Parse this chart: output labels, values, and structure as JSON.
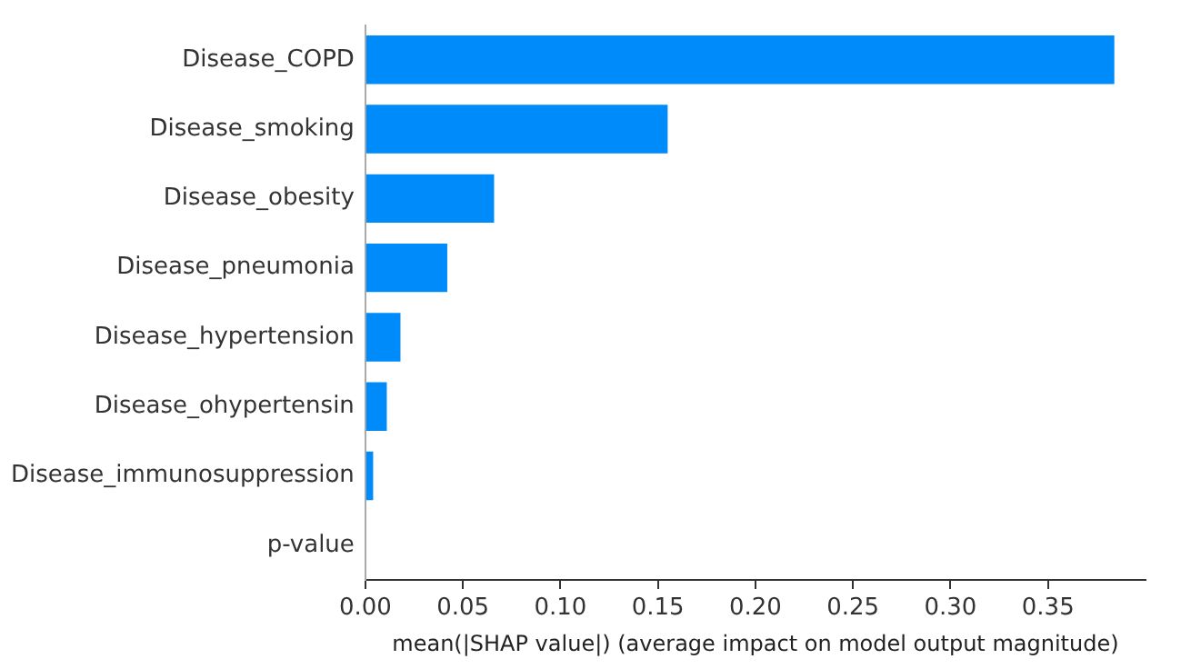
{
  "chart_data": {
    "type": "bar",
    "orientation": "horizontal",
    "xlabel": "mean(|SHAP value|) (average impact on model output magnitude)",
    "categories": [
      "Disease_COPD",
      "Disease_smoking",
      "Disease_obesity",
      "Disease_pneumonia",
      "Disease_hypertension",
      "Disease_ohypertensin",
      "Disease_immunosuppression",
      "p-value"
    ],
    "values": [
      0.384,
      0.155,
      0.066,
      0.042,
      0.018,
      0.011,
      0.004,
      0
    ],
    "color": "#008bfb",
    "xlim": [
      0,
      0.4
    ],
    "xticks": [
      {
        "value": 0,
        "label": "0.00"
      },
      {
        "value": 0.05,
        "label": "0.05"
      },
      {
        "value": 0.1,
        "label": "0.10"
      },
      {
        "value": 0.15,
        "label": "0.15"
      },
      {
        "value": 0.2,
        "label": "0.20"
      },
      {
        "value": 0.25,
        "label": "0.25"
      },
      {
        "value": 0.3,
        "label": "0.30"
      },
      {
        "value": 0.35,
        "label": "0.35"
      }
    ],
    "grid": false,
    "legend": false
  }
}
